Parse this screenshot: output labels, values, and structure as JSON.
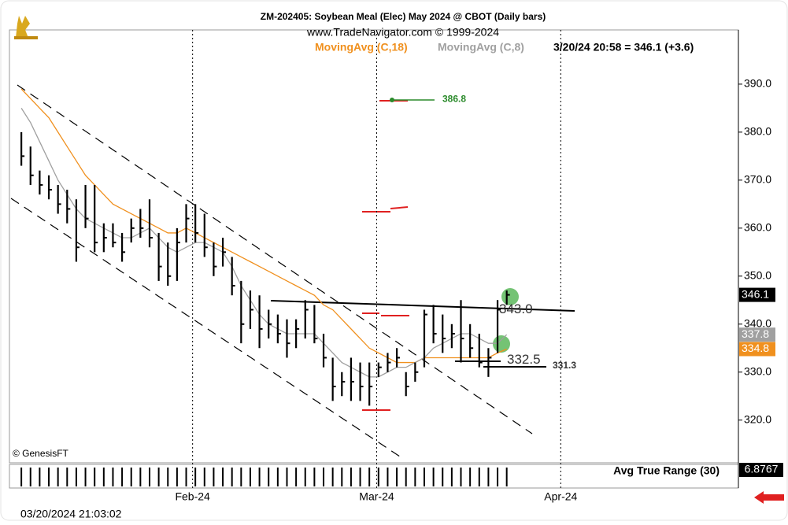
{
  "chart_data": {
    "type": "ohlc",
    "title": "ZM-202405:  Soybean Meal (Elec) May 2024 @ CBOT  (Daily bars)",
    "subtitle": "www.TradeNavigator.com © 1999-2024",
    "status": "3/20/24 20:58 = 346.1 (+3.6)",
    "copyright": "© GenesisFT",
    "timestamp": "03/20/2024 21:03:02",
    "lower_panel": {
      "name": "Avg True Range (30)",
      "last": 6.8767
    },
    "bar_color": "#000000",
    "high": [
      380,
      377,
      372,
      371,
      369,
      368,
      366,
      369,
      369,
      361,
      361,
      359,
      362,
      364,
      366,
      359,
      357,
      360,
      365,
      365,
      363,
      357,
      358,
      354,
      349,
      347,
      346,
      343,
      342,
      341,
      341,
      345,
      344,
      338,
      333,
      330,
      333,
      332,
      332,
      332,
      334,
      335,
      330,
      332,
      343,
      344,
      342,
      340,
      345,
      340,
      338,
      335,
      345,
      347
    ],
    "low": [
      373,
      369,
      367,
      366,
      363,
      361,
      353,
      360,
      355,
      355,
      356,
      353,
      357,
      358,
      356,
      349,
      348,
      349,
      357,
      357,
      354,
      350,
      352,
      346,
      336,
      339,
      335,
      337,
      336,
      333,
      335,
      337,
      336,
      331,
      324,
      325,
      324,
      324,
      323,
      329,
      330,
      331,
      325,
      328,
      331,
      336,
      334,
      335,
      332,
      333,
      331,
      329,
      334,
      344
    ],
    "close": [
      375,
      371,
      369,
      368,
      365,
      364,
      356,
      362,
      357,
      358,
      357,
      355,
      360,
      360,
      358,
      352,
      350,
      357,
      362,
      359,
      356,
      352,
      355,
      348,
      340,
      343,
      339,
      340,
      338,
      336,
      339,
      343,
      337,
      333,
      327,
      328,
      328,
      327,
      327,
      331,
      332,
      333,
      327,
      330,
      342,
      338,
      337,
      338,
      337,
      335,
      332,
      333,
      343,
      346.1
    ],
    "series": [
      {
        "name": "MovingAvg (C,18)",
        "color": "#f0901e",
        "values": [
          389,
          387,
          385,
          383,
          380,
          377,
          374,
          371,
          369,
          367,
          365,
          364,
          363,
          362,
          361,
          360,
          359,
          359,
          360,
          359,
          358,
          357,
          356,
          355,
          354,
          353,
          352,
          351,
          350,
          349,
          348,
          347,
          346,
          344,
          343,
          341,
          339,
          337,
          335,
          334,
          333,
          332,
          332,
          332,
          333,
          333,
          333,
          333,
          333,
          333,
          333,
          333,
          334,
          334.8
        ],
        "last": 334.8
      },
      {
        "name": "MovingAvg (C,8)",
        "color": "#a0a0a0",
        "values": [
          385,
          382,
          378,
          374,
          370,
          367,
          364,
          362,
          361,
          360,
          359,
          358,
          358,
          359,
          360,
          358,
          356,
          355,
          356,
          357,
          357,
          356,
          355,
          352,
          348,
          345,
          342,
          340,
          339,
          338,
          338,
          338,
          338,
          336,
          334,
          332,
          331,
          330,
          329,
          329,
          330,
          331,
          331,
          332,
          333,
          335,
          336,
          337,
          338,
          338,
          337,
          336,
          336,
          337.8
        ],
        "last": 337.8
      }
    ],
    "last_price": 346.1,
    "annotations": [
      {
        "value": 386.8,
        "label": "386.8",
        "color": "#2a8a2a"
      },
      {
        "value": 343.0,
        "label": "343.0",
        "color": "#333333"
      },
      {
        "value": 332.5,
        "label": "332.5",
        "color": "#333333"
      },
      {
        "value": 331.3,
        "label": "331.3",
        "color": "#333333"
      }
    ],
    "xlim": [
      -1.3,
      78.3
    ],
    "xticks": [
      {
        "value": 18.7,
        "label": "Feb-24"
      },
      {
        "value": 38.8,
        "label": "Mar-24"
      },
      {
        "value": 58.9,
        "label": "Apr-24"
      }
    ],
    "ylim": [
      311.1,
      401.3
    ],
    "yticks": [
      {
        "value": 320,
        "label": "320.0"
      },
      {
        "value": 330,
        "label": "330.0"
      },
      {
        "value": 340,
        "label": "340.0"
      },
      {
        "value": 350,
        "label": "350.0"
      },
      {
        "value": 360,
        "label": "360.0"
      },
      {
        "value": 370,
        "label": "370.0"
      },
      {
        "value": 380,
        "label": "380.0"
      },
      {
        "value": 390,
        "label": "390.0"
      }
    ]
  }
}
